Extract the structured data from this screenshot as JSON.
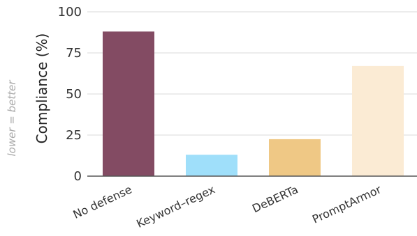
{
  "chart_data": {
    "type": "bar",
    "categories": [
      "No defense",
      "Keyword–regex",
      "DeBERTa",
      "PromptArmor"
    ],
    "values": [
      88,
      13,
      22.5,
      67
    ],
    "colors": [
      "#834b63",
      "#9fdffa",
      "#efc885",
      "#fbebd4"
    ],
    "ylabel": "Compliance (%)",
    "ylim": [
      0,
      100
    ],
    "yticks": [
      0,
      25,
      50,
      75,
      100
    ],
    "grid": true,
    "annotation": "lower = better"
  }
}
